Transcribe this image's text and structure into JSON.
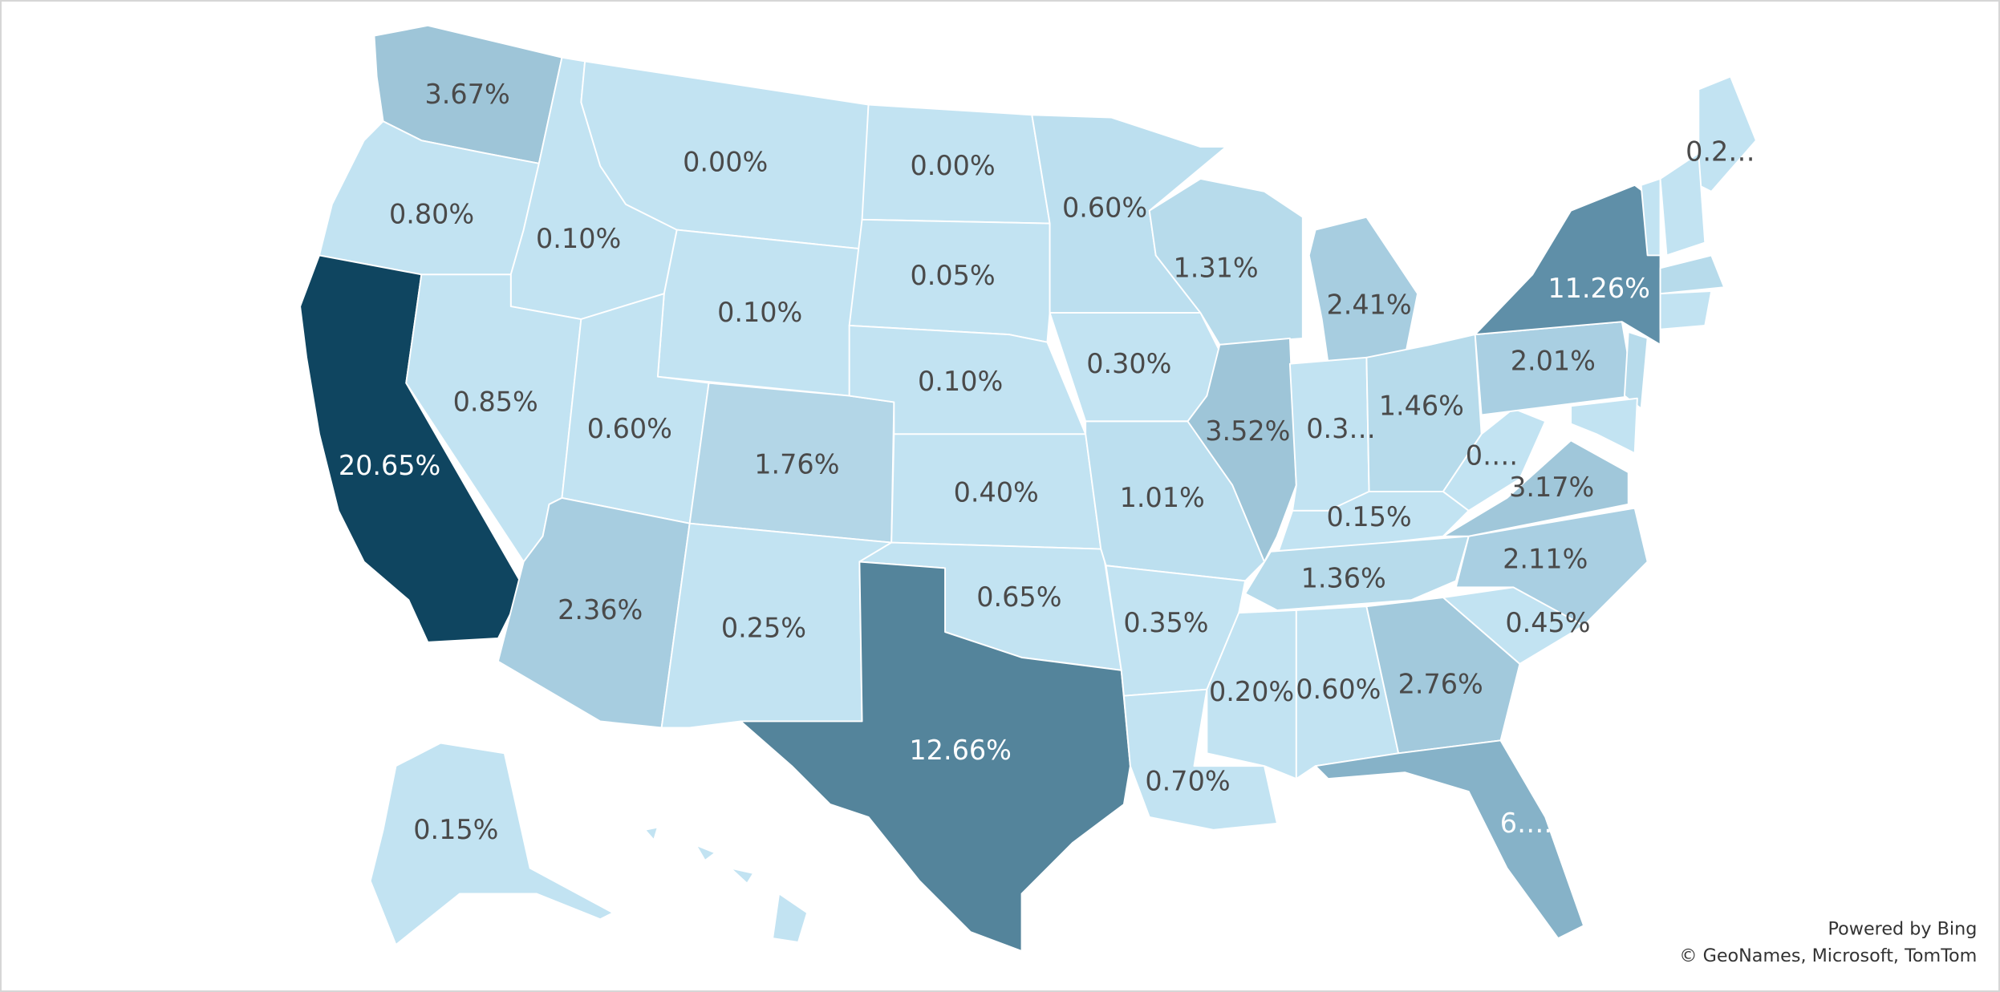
{
  "map": {
    "regions": [
      {
        "label": "3.67%",
        "color": "#9ec5d8"
      },
      {
        "label": "0.80%",
        "color": "#c2e3f2"
      },
      {
        "label": "20.65%",
        "color": "#0f4560"
      },
      {
        "label": "0.10%",
        "color": "#c2e3f2"
      },
      {
        "label": "0.85%",
        "color": "#c2e3f2"
      },
      {
        "label": "0.00%",
        "color": "#c2e3f2"
      },
      {
        "label": "0.10%",
        "color": "#c2e3f2"
      },
      {
        "label": "0.60%",
        "color": "#c2e3f2"
      },
      {
        "label": "1.76%",
        "color": "#b3d6e7"
      },
      {
        "label": "2.36%",
        "color": "#a7cde0"
      },
      {
        "label": "0.25%",
        "color": "#c2e3f2"
      },
      {
        "label": "0.00%",
        "color": "#c2e3f2"
      },
      {
        "label": "0.05%",
        "color": "#c2e3f2"
      },
      {
        "label": "0.10%",
        "color": "#c2e3f2"
      },
      {
        "label": "0.40%",
        "color": "#c2e3f2"
      },
      {
        "label": "0.65%",
        "color": "#c2e3f2"
      },
      {
        "label": "12.66%",
        "color": "#54849b"
      },
      {
        "label": "0.60%",
        "color": "#bcdfef"
      },
      {
        "label": "0.30%",
        "color": "#c2e3f2"
      },
      {
        "label": "1.01%",
        "color": "#bcdfef"
      },
      {
        "label": "0.35%",
        "color": "#c2e3f2"
      },
      {
        "label": "0.70%",
        "color": "#c2e3f2"
      },
      {
        "label": "1.31%",
        "color": "#b7dbeb"
      },
      {
        "label": "3.52%",
        "color": "#9ec5d8"
      },
      {
        "label": "2.41%",
        "color": "#a7cde0"
      },
      {
        "label": "0.3…",
        "color": "#c2e3f2"
      },
      {
        "label": "1.46%",
        "color": "#b7dbeb"
      },
      {
        "label": "0.15%",
        "color": "#c2e3f2"
      },
      {
        "label": "1.36%",
        "color": "#b7dbeb"
      },
      {
        "label": "0.20%",
        "color": "#c2e3f2"
      },
      {
        "label": "0.60%",
        "color": "#c2e3f2"
      },
      {
        "label": "2.76%",
        "color": "#a2c9dc"
      },
      {
        "label": "6….",
        "color": "#86b2c8"
      },
      {
        "label": "0.45%",
        "color": "#c2e3f2"
      },
      {
        "label": "2.11%",
        "color": "#a9cfe2"
      },
      {
        "label": "3.17%",
        "color": "#a0c7da"
      },
      {
        "label": "0….",
        "color": "#c2e3f2"
      },
      {
        "label": "2.01%",
        "color": "#a9cfe2"
      },
      {
        "label": "11.26%",
        "color": "#5f8fa8"
      },
      {
        "label": "0.2…",
        "color": "#c2e3f2"
      },
      {
        "label": "0.15%",
        "color": "#c2e3f2"
      }
    ]
  },
  "credits": {
    "line1": "Powered by Bing",
    "line2": "© GeoNames, Microsoft, TomTom"
  }
}
